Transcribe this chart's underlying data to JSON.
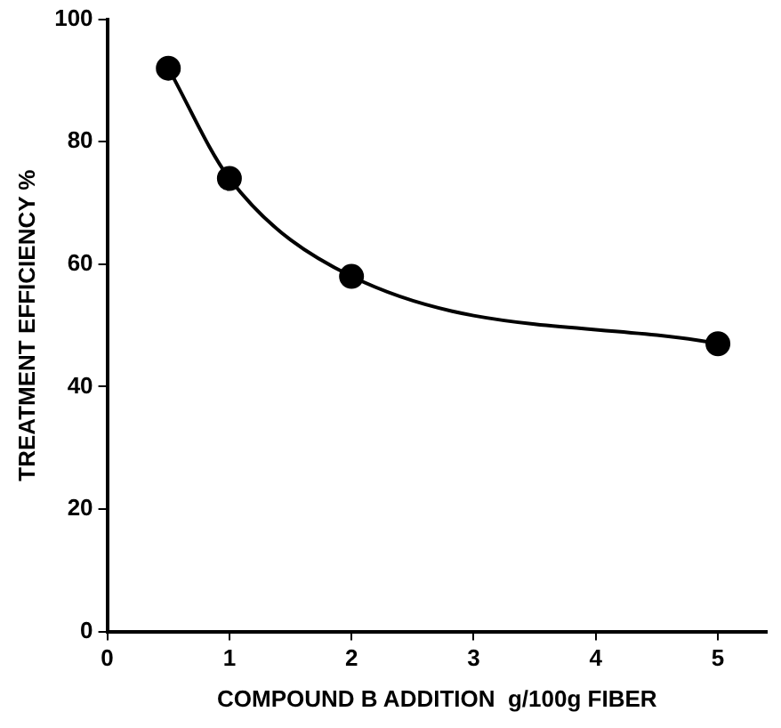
{
  "chart_data": {
    "type": "line",
    "xlabel": "COMPOUND B ADDITION  g/100g FIBER",
    "ylabel": "TREATMENT EFFICIENCY %",
    "x": [
      0.5,
      1,
      2,
      5
    ],
    "series": [
      {
        "color": "#000000",
        "values": [
          92,
          74,
          58,
          47
        ]
      }
    ],
    "xlim": [
      0,
      5.4
    ],
    "xticks": [
      0,
      1,
      2,
      3,
      4,
      5
    ],
    "ylim": [
      0,
      100
    ],
    "yticks": [
      0,
      20,
      40,
      60,
      80,
      100
    ],
    "marker": "circle",
    "line_style": "solid",
    "grid": false,
    "legend": false
  }
}
